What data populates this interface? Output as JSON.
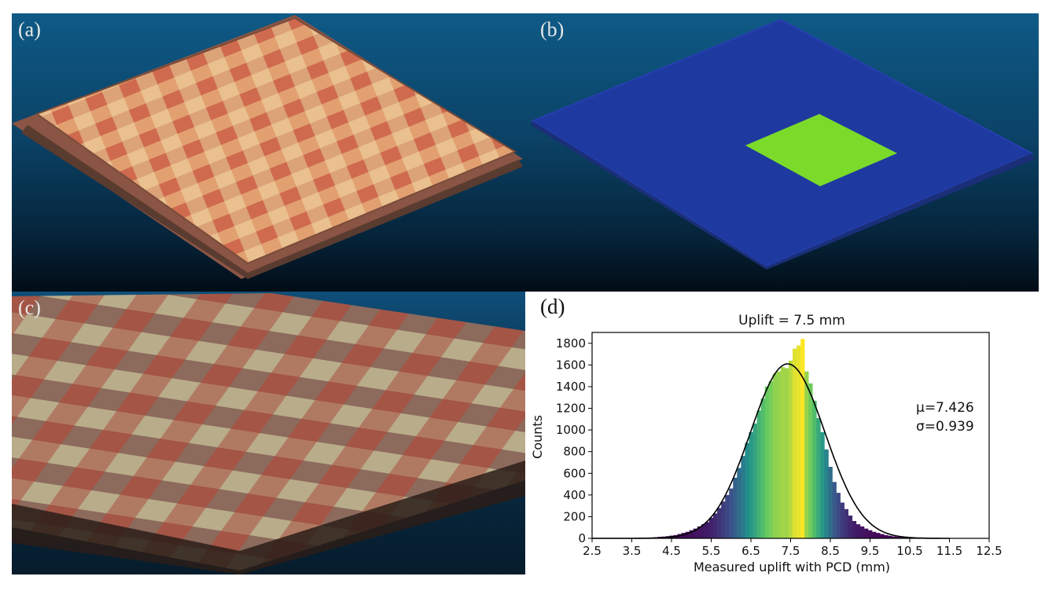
{
  "panels": {
    "a": {
      "label": "(a)"
    },
    "b": {
      "label": "(b)"
    },
    "c": {
      "label": "(c)"
    },
    "d": {
      "label": "(d)"
    }
  },
  "chart_data": {
    "type": "bar",
    "title": "Uplift = 7.5 mm",
    "xlabel": "Measured uplift with PCD (mm)",
    "ylabel": "Counts",
    "xlim": [
      2.5,
      12.5
    ],
    "ylim": [
      0,
      1900
    ],
    "xticks": [
      "2.5",
      "3.5",
      "4.5",
      "5.5",
      "6.5",
      "7.5",
      "8.5",
      "9.5",
      "10.5",
      "11.5",
      "12.5"
    ],
    "yticks": [
      "0",
      "200",
      "400",
      "600",
      "800",
      "1000",
      "1200",
      "1400",
      "1600",
      "1800"
    ],
    "bin_width": 0.1,
    "bins": [
      {
        "x": 3.9,
        "count": 5
      },
      {
        "x": 4.0,
        "count": 8
      },
      {
        "x": 4.1,
        "count": 10
      },
      {
        "x": 4.2,
        "count": 14
      },
      {
        "x": 4.3,
        "count": 16
      },
      {
        "x": 4.4,
        "count": 20
      },
      {
        "x": 4.5,
        "count": 25
      },
      {
        "x": 4.6,
        "count": 30
      },
      {
        "x": 4.7,
        "count": 40
      },
      {
        "x": 4.8,
        "count": 50
      },
      {
        "x": 4.9,
        "count": 60
      },
      {
        "x": 5.0,
        "count": 75
      },
      {
        "x": 5.1,
        "count": 90
      },
      {
        "x": 5.2,
        "count": 110
      },
      {
        "x": 5.3,
        "count": 130
      },
      {
        "x": 5.4,
        "count": 150
      },
      {
        "x": 5.5,
        "count": 190
      },
      {
        "x": 5.6,
        "count": 230
      },
      {
        "x": 5.7,
        "count": 280
      },
      {
        "x": 5.8,
        "count": 340
      },
      {
        "x": 5.9,
        "count": 400
      },
      {
        "x": 6.0,
        "count": 460
      },
      {
        "x": 6.1,
        "count": 560
      },
      {
        "x": 6.2,
        "count": 650
      },
      {
        "x": 6.3,
        "count": 760
      },
      {
        "x": 6.4,
        "count": 880
      },
      {
        "x": 6.5,
        "count": 980
      },
      {
        "x": 6.6,
        "count": 1060
      },
      {
        "x": 6.7,
        "count": 1180
      },
      {
        "x": 6.8,
        "count": 1290
      },
      {
        "x": 6.9,
        "count": 1400
      },
      {
        "x": 7.0,
        "count": 1450
      },
      {
        "x": 7.1,
        "count": 1520
      },
      {
        "x": 7.2,
        "count": 1540
      },
      {
        "x": 7.3,
        "count": 1580
      },
      {
        "x": 7.4,
        "count": 1570
      },
      {
        "x": 7.5,
        "count": 1640
      },
      {
        "x": 7.6,
        "count": 1750
      },
      {
        "x": 7.7,
        "count": 1780
      },
      {
        "x": 7.8,
        "count": 1840
      },
      {
        "x": 7.9,
        "count": 1540
      },
      {
        "x": 8.0,
        "count": 1430
      },
      {
        "x": 8.1,
        "count": 1270
      },
      {
        "x": 8.2,
        "count": 1110
      },
      {
        "x": 8.3,
        "count": 980
      },
      {
        "x": 8.4,
        "count": 820
      },
      {
        "x": 8.5,
        "count": 660
      },
      {
        "x": 8.6,
        "count": 520
      },
      {
        "x": 8.7,
        "count": 420
      },
      {
        "x": 8.8,
        "count": 330
      },
      {
        "x": 8.9,
        "count": 270
      },
      {
        "x": 9.0,
        "count": 210
      },
      {
        "x": 9.1,
        "count": 160
      },
      {
        "x": 9.2,
        "count": 130
      },
      {
        "x": 9.3,
        "count": 110
      },
      {
        "x": 9.4,
        "count": 90
      },
      {
        "x": 9.5,
        "count": 75
      },
      {
        "x": 9.6,
        "count": 60
      },
      {
        "x": 9.7,
        "count": 50
      },
      {
        "x": 9.8,
        "count": 40
      },
      {
        "x": 9.9,
        "count": 30
      },
      {
        "x": 10.0,
        "count": 24
      },
      {
        "x": 10.1,
        "count": 18
      },
      {
        "x": 10.2,
        "count": 14
      },
      {
        "x": 10.3,
        "count": 10
      },
      {
        "x": 10.4,
        "count": 8
      },
      {
        "x": 10.5,
        "count": 6
      },
      {
        "x": 10.6,
        "count": 4
      }
    ],
    "fit": {
      "type": "normal",
      "mu": 7.426,
      "sigma": 0.939,
      "peak": 1610,
      "color": "#000000"
    },
    "annotations": [
      "μ=7.426",
      "σ=0.939"
    ],
    "colormap": "viridis"
  }
}
